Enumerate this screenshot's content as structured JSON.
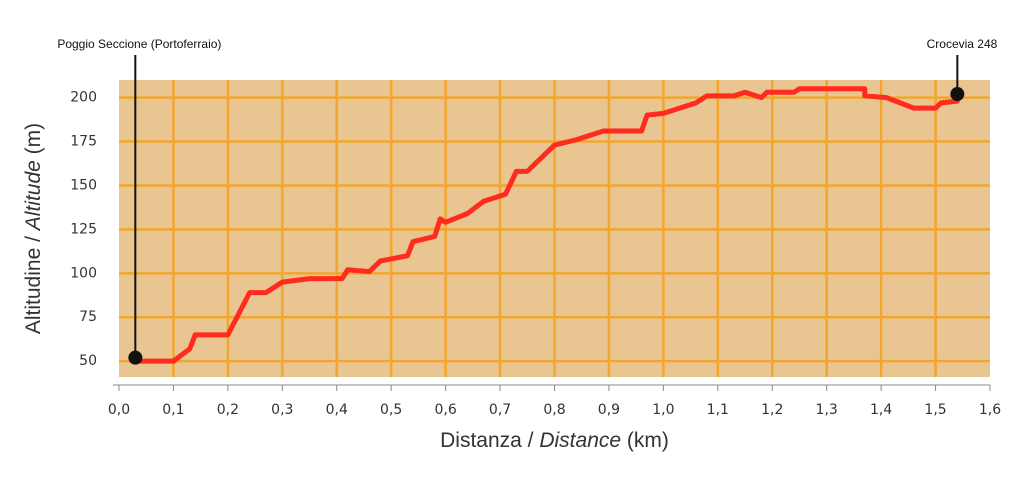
{
  "chart_data": {
    "type": "line",
    "x_label": [
      "Distanza / ",
      "Distance",
      " (km)"
    ],
    "y_label": [
      "Altitudine / ",
      "Altitude",
      " (m)"
    ],
    "x": [
      0.03,
      0.1,
      0.13,
      0.14,
      0.2,
      0.24,
      0.27,
      0.3,
      0.35,
      0.41,
      0.42,
      0.46,
      0.48,
      0.53,
      0.54,
      0.58,
      0.59,
      0.6,
      0.64,
      0.67,
      0.71,
      0.73,
      0.75,
      0.8,
      0.84,
      0.89,
      0.96,
      0.97,
      1.0,
      1.06,
      1.08,
      1.13,
      1.15,
      1.18,
      1.19,
      1.24,
      1.25,
      1.37,
      1.37,
      1.41,
      1.46,
      1.5,
      1.51,
      1.54
    ],
    "series": [
      {
        "color": "#ff2b1f",
        "values": [
          50,
          50,
          57,
          65,
          65,
          89,
          89,
          95,
          97,
          97,
          102,
          101,
          107,
          110,
          118,
          121,
          131,
          129,
          134,
          141,
          145,
          158,
          158,
          173,
          176,
          181,
          181,
          190,
          191,
          197,
          201,
          201,
          203,
          200,
          203,
          203,
          205,
          205,
          201,
          200,
          194,
          194,
          197,
          198
        ]
      }
    ],
    "xlim": [
      0,
      1.6
    ],
    "ylim": [
      41,
      210
    ],
    "xticks": [
      {
        "value": 0,
        "label": "0,0"
      },
      {
        "value": 0.1,
        "label": "0,1"
      },
      {
        "value": 0.2,
        "label": "0,2"
      },
      {
        "value": 0.3,
        "label": "0,3"
      },
      {
        "value": 0.4,
        "label": "0,4"
      },
      {
        "value": 0.5,
        "label": "0,5"
      },
      {
        "value": 0.6,
        "label": "0,6"
      },
      {
        "value": 0.7,
        "label": "0,7"
      },
      {
        "value": 0.8,
        "label": "0,8"
      },
      {
        "value": 0.9,
        "label": "0,9"
      },
      {
        "value": 1.0,
        "label": "1,0"
      },
      {
        "value": 1.1,
        "label": "1,1"
      },
      {
        "value": 1.2,
        "label": "1,2"
      },
      {
        "value": 1.3,
        "label": "1,3"
      },
      {
        "value": 1.4,
        "label": "1,4"
      },
      {
        "value": 1.5,
        "label": "1,5"
      },
      {
        "value": 1.6,
        "label": "1,6"
      }
    ],
    "yticks": [
      50,
      75,
      100,
      125,
      150,
      175,
      200
    ],
    "grid": true,
    "annotations": [
      {
        "text": "Poggio Seccione (Portoferraio)",
        "x": 0.03,
        "y": 52
      },
      {
        "text": "Crocevia 248",
        "x": 1.54,
        "y": 202
      }
    ]
  }
}
